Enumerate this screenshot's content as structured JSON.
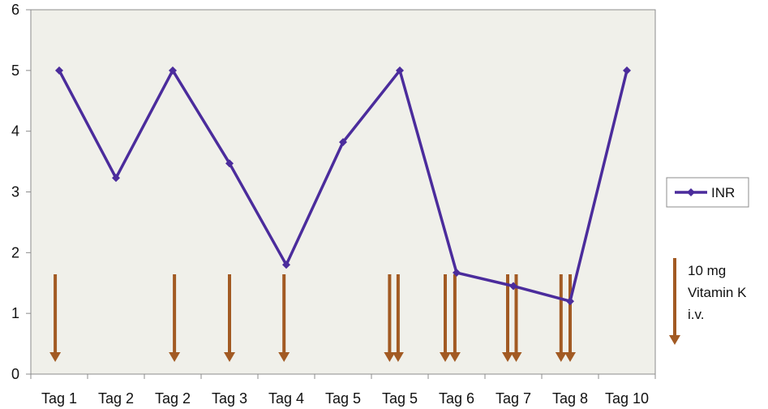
{
  "chart_data": {
    "type": "line",
    "categories": [
      "Tag 1",
      "Tag 2",
      "Tag 2",
      "Tag 3",
      "Tag 4",
      "Tag 5",
      "Tag 5",
      "Tag 6",
      "Tag 7",
      "Tag 8",
      "Tag 10"
    ],
    "series": [
      {
        "name": "INR",
        "color": "#4b2c9c",
        "x_positions": [
          0.5,
          1.5,
          2.5,
          3.5,
          4.5,
          5.5,
          6.5,
          7.5,
          8.5,
          9.5,
          10.5
        ],
        "values": [
          5.0,
          3.23,
          5.0,
          3.47,
          1.8,
          3.82,
          5.0,
          1.67,
          1.45,
          1.2,
          5.0
        ]
      }
    ],
    "vitamin_k_doses": {
      "label_lines": [
        "10 mg",
        "Vitamin K",
        "i.v."
      ],
      "color": "#a25a23",
      "x_positions": [
        0.43,
        2.53,
        3.5,
        4.46,
        6.32,
        6.47,
        7.3,
        7.47,
        8.4,
        8.55,
        9.34,
        9.5
      ]
    },
    "ylim": [
      0,
      6
    ],
    "y_ticks": [
      0,
      1,
      2,
      3,
      4,
      5,
      6
    ],
    "xlim": [
      0,
      11
    ],
    "grid": false,
    "legend": "right",
    "plot_background": "#f0f0ea",
    "title": "",
    "xlabel": "",
    "ylabel": ""
  }
}
